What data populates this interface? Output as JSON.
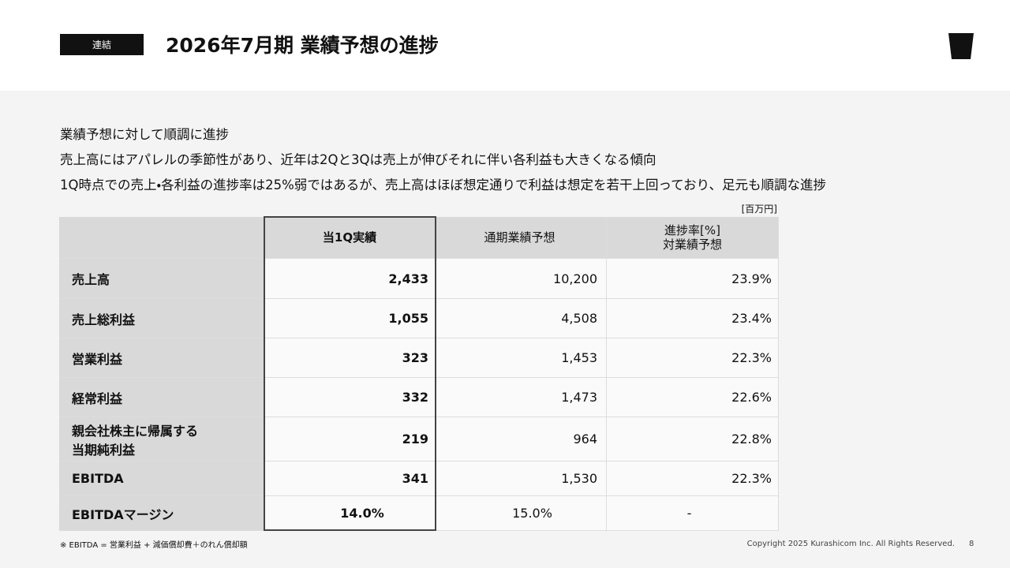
{
  "header": {
    "badge": "連結",
    "title": "2026年7月期 業績予想の進捗"
  },
  "bullets": [
    "業績予想に対して順調に進捗",
    "売上高にはアパレルの季節性があり、近年は2Qと3Qは売上が伸びそれに伴い各利益も大きくなる傾向",
    "1Q時点での売上・各利益の進捗率は25%弱ではあるが、売上高はほぼ想定通りで利益は想定を若干上回っており、足元も順調な進捗"
  ],
  "table": {
    "unit": "[百万円]",
    "columns": [
      [
        "当1Q実績"
      ],
      [
        "通期業績予想"
      ],
      [
        "進捗率[%]",
        "対業績予想"
      ]
    ],
    "rows": [
      {
        "label": [
          "売上高"
        ],
        "cells": [
          "2,433",
          "10,200",
          "23.9%"
        ]
      },
      {
        "label": [
          "売上総利益"
        ],
        "cells": [
          "1,055",
          "4,508",
          "23.4%"
        ]
      },
      {
        "label": [
          "営業利益"
        ],
        "cells": [
          "323",
          "1,453",
          "22.3%"
        ]
      },
      {
        "label": [
          "経常利益"
        ],
        "cells": [
          "332",
          "1,473",
          "22.6%"
        ]
      },
      {
        "label": [
          "親会社株主に帰属する",
          "当期純利益"
        ],
        "cells": [
          "219",
          "964",
          "22.8%"
        ]
      },
      {
        "label": [
          "EBITDA"
        ],
        "cells": [
          "341",
          "1,530",
          "22.3%"
        ]
      },
      {
        "label": [
          "EBITDAマージン"
        ],
        "cells": [
          "14.0%",
          "15.0%",
          "-"
        ]
      }
    ]
  },
  "footnote": "※ EBITDA = 営業利益 + 減価償却費＋のれん償却額",
  "footer": {
    "copyright": "Copyright 2025 Kurashicom Inc. All Rights Reserved.",
    "page": "8"
  }
}
